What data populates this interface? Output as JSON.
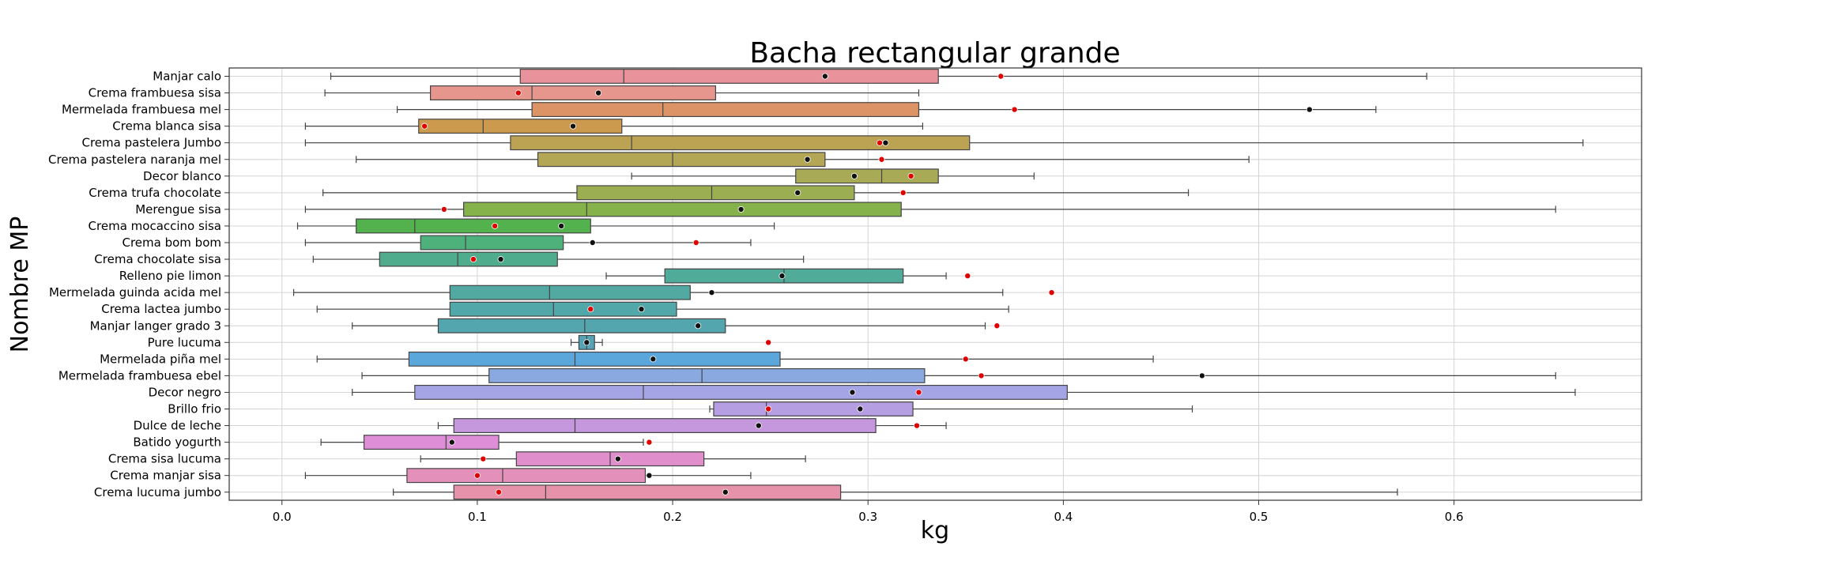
{
  "chart_data": {
    "type": "boxplot",
    "title": "Bacha rectangular grande",
    "xlabel": "kg",
    "ylabel": "Nombre MP",
    "xlim": [
      -0.027,
      0.696
    ],
    "xticks": [
      "0.0",
      "0.1",
      "0.2",
      "0.3",
      "0.4",
      "0.5",
      "0.6"
    ],
    "grid": true,
    "orientation": "horizontal",
    "marker_legend": {
      "black_dot": "mean",
      "red_dot": "reference"
    },
    "categories": [
      {
        "name": "Manjar calo",
        "whisker_low": 0.025,
        "q1": 0.122,
        "median": 0.175,
        "q3": 0.336,
        "whisker_high": 0.586,
        "black": 0.278,
        "red": 0.368,
        "color": "#e8939b"
      },
      {
        "name": "Crema frambuesa sisa",
        "whisker_low": 0.022,
        "q1": 0.076,
        "median": 0.128,
        "q3": 0.222,
        "whisker_high": 0.326,
        "black": 0.162,
        "red": 0.121,
        "color": "#e6968c"
      },
      {
        "name": "Mermelada frambuesa mel",
        "whisker_low": 0.059,
        "q1": 0.128,
        "median": 0.195,
        "q3": 0.326,
        "whisker_high": 0.56,
        "black": 0.526,
        "red": 0.375,
        "color": "#dc9466"
      },
      {
        "name": "Crema blanca sisa",
        "whisker_low": 0.012,
        "q1": 0.07,
        "median": 0.103,
        "q3": 0.174,
        "whisker_high": 0.328,
        "black": 0.149,
        "red": 0.073,
        "color": "#cc9a4e"
      },
      {
        "name": "Crema pastelera Jumbo",
        "whisker_low": 0.012,
        "q1": 0.117,
        "median": 0.179,
        "q3": 0.352,
        "whisker_high": 0.666,
        "black": 0.309,
        "red": 0.306,
        "color": "#bca354"
      },
      {
        "name": "Crema pastelera naranja mel",
        "whisker_low": 0.038,
        "q1": 0.131,
        "median": 0.2,
        "q3": 0.278,
        "whisker_high": 0.495,
        "black": 0.269,
        "red": 0.307,
        "color": "#b3a655"
      },
      {
        "name": "Decor blanco",
        "whisker_low": 0.179,
        "q1": 0.263,
        "median": 0.307,
        "q3": 0.336,
        "whisker_high": 0.385,
        "black": 0.293,
        "red": 0.322,
        "color": "#a8aa55"
      },
      {
        "name": "Crema trufa chocolate",
        "whisker_low": 0.021,
        "q1": 0.151,
        "median": 0.22,
        "q3": 0.293,
        "whisker_high": 0.464,
        "black": 0.264,
        "red": 0.318,
        "color": "#9cae52"
      },
      {
        "name": "Merengue sisa",
        "whisker_low": 0.012,
        "q1": 0.093,
        "median": 0.156,
        "q3": 0.317,
        "whisker_high": 0.652,
        "black": 0.235,
        "red": 0.083,
        "color": "#86b24c"
      },
      {
        "name": "Crema mocaccino sisa",
        "whisker_low": 0.008,
        "q1": 0.038,
        "median": 0.068,
        "q3": 0.158,
        "whisker_high": 0.252,
        "black": 0.143,
        "red": 0.109,
        "color": "#54b24e"
      },
      {
        "name": "Crema bom bom",
        "whisker_low": 0.012,
        "q1": 0.071,
        "median": 0.094,
        "q3": 0.144,
        "whisker_high": 0.24,
        "black": 0.159,
        "red": 0.212,
        "color": "#4eb07a"
      },
      {
        "name": "Crema chocolate sisa",
        "whisker_low": 0.016,
        "q1": 0.05,
        "median": 0.09,
        "q3": 0.141,
        "whisker_high": 0.267,
        "black": 0.112,
        "red": 0.098,
        "color": "#4fad8d"
      },
      {
        "name": "Relleno pie limon",
        "whisker_low": 0.166,
        "q1": 0.196,
        "median": 0.257,
        "q3": 0.318,
        "whisker_high": 0.34,
        "black": 0.256,
        "red": 0.351,
        "color": "#50ab98"
      },
      {
        "name": "Mermelada guinda acida mel",
        "whisker_low": 0.006,
        "q1": 0.086,
        "median": 0.137,
        "q3": 0.209,
        "whisker_high": 0.369,
        "black": 0.22,
        "red": 0.394,
        "color": "#51a9a1"
      },
      {
        "name": "Crema lactea jumbo",
        "whisker_low": 0.018,
        "q1": 0.086,
        "median": 0.139,
        "q3": 0.202,
        "whisker_high": 0.372,
        "black": 0.184,
        "red": 0.158,
        "color": "#52a7a8"
      },
      {
        "name": "Manjar langer grado 3",
        "whisker_low": 0.036,
        "q1": 0.08,
        "median": 0.155,
        "q3": 0.227,
        "whisker_high": 0.36,
        "black": 0.213,
        "red": 0.366,
        "color": "#53a5ae"
      },
      {
        "name": "Pure lucuma",
        "whisker_low": 0.148,
        "q1": 0.152,
        "median": 0.156,
        "q3": 0.16,
        "whisker_high": 0.164,
        "black": 0.156,
        "red": 0.249,
        "color": "#55a3b5"
      },
      {
        "name": "Mermelada piña mel",
        "whisker_low": 0.018,
        "q1": 0.065,
        "median": 0.15,
        "q3": 0.255,
        "whisker_high": 0.446,
        "black": 0.19,
        "red": 0.35,
        "color": "#5ba6da"
      },
      {
        "name": "Mermelada frambuesa ebel",
        "whisker_low": 0.041,
        "q1": 0.106,
        "median": 0.215,
        "q3": 0.329,
        "whisker_high": 0.652,
        "black": 0.471,
        "red": 0.358,
        "color": "#8aa9e0"
      },
      {
        "name": "Decor negro",
        "whisker_low": 0.036,
        "q1": 0.068,
        "median": 0.185,
        "q3": 0.402,
        "whisker_high": 0.662,
        "black": 0.292,
        "red": 0.326,
        "color": "#a5a4e4"
      },
      {
        "name": "Brillo frio ",
        "whisker_low": 0.219,
        "q1": 0.221,
        "median": 0.248,
        "q3": 0.323,
        "whisker_high": 0.466,
        "black": 0.296,
        "red": 0.249,
        "color": "#b69ee2"
      },
      {
        "name": "Dulce de leche",
        "whisker_low": 0.08,
        "q1": 0.088,
        "median": 0.15,
        "q3": 0.304,
        "whisker_high": 0.34,
        "black": 0.244,
        "red": 0.325,
        "color": "#c597dc"
      },
      {
        "name": "Batido yogurth",
        "whisker_low": 0.02,
        "q1": 0.042,
        "median": 0.084,
        "q3": 0.111,
        "whisker_high": 0.185,
        "black": 0.087,
        "red": 0.188,
        "color": "#dd8ed7"
      },
      {
        "name": "Crema sisa lucuma",
        "whisker_low": 0.071,
        "q1": 0.12,
        "median": 0.168,
        "q3": 0.216,
        "whisker_high": 0.268,
        "black": 0.172,
        "red": 0.103,
        "color": "#e18fcc"
      },
      {
        "name": "Crema manjar sisa",
        "whisker_low": 0.012,
        "q1": 0.064,
        "median": 0.113,
        "q3": 0.186,
        "whisker_high": 0.24,
        "black": 0.188,
        "red": 0.1,
        "color": "#e391bb"
      },
      {
        "name": "Crema lucuma jumbo",
        "whisker_low": 0.057,
        "q1": 0.088,
        "median": 0.135,
        "q3": 0.286,
        "whisker_high": 0.571,
        "black": 0.227,
        "red": 0.111,
        "color": "#e692ab"
      }
    ]
  }
}
